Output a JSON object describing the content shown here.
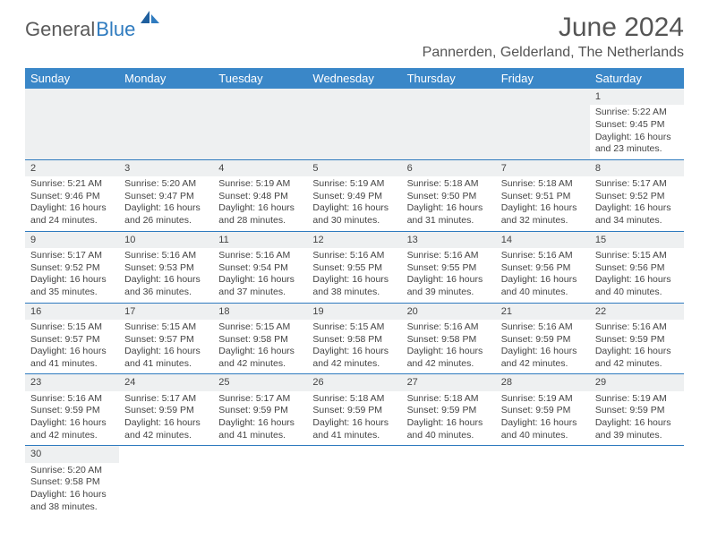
{
  "logo": {
    "general": "General",
    "blue": "Blue"
  },
  "title": "June 2024",
  "location": "Pannerden, Gelderland, The Netherlands",
  "colors": {
    "header_bg": "#3a87c8",
    "header_text": "#ffffff",
    "row_divider": "#2f7bbf",
    "daynum_bg": "#eef0f1",
    "body_text": "#444444",
    "logo_gray": "#5a5a5a",
    "logo_blue": "#2f7bbf"
  },
  "font": {
    "title_size_pt": 22,
    "location_size_pt": 12,
    "header_size_pt": 10,
    "cell_size_pt": 8
  },
  "dayNames": [
    "Sunday",
    "Monday",
    "Tuesday",
    "Wednesday",
    "Thursday",
    "Friday",
    "Saturday"
  ],
  "weeks": [
    [
      null,
      null,
      null,
      null,
      null,
      null,
      {
        "n": "1",
        "sr": "5:22 AM",
        "ss": "9:45 PM",
        "dl": "16 hours and 23 minutes."
      }
    ],
    [
      {
        "n": "2",
        "sr": "5:21 AM",
        "ss": "9:46 PM",
        "dl": "16 hours and 24 minutes."
      },
      {
        "n": "3",
        "sr": "5:20 AM",
        "ss": "9:47 PM",
        "dl": "16 hours and 26 minutes."
      },
      {
        "n": "4",
        "sr": "5:19 AM",
        "ss": "9:48 PM",
        "dl": "16 hours and 28 minutes."
      },
      {
        "n": "5",
        "sr": "5:19 AM",
        "ss": "9:49 PM",
        "dl": "16 hours and 30 minutes."
      },
      {
        "n": "6",
        "sr": "5:18 AM",
        "ss": "9:50 PM",
        "dl": "16 hours and 31 minutes."
      },
      {
        "n": "7",
        "sr": "5:18 AM",
        "ss": "9:51 PM",
        "dl": "16 hours and 32 minutes."
      },
      {
        "n": "8",
        "sr": "5:17 AM",
        "ss": "9:52 PM",
        "dl": "16 hours and 34 minutes."
      }
    ],
    [
      {
        "n": "9",
        "sr": "5:17 AM",
        "ss": "9:52 PM",
        "dl": "16 hours and 35 minutes."
      },
      {
        "n": "10",
        "sr": "5:16 AM",
        "ss": "9:53 PM",
        "dl": "16 hours and 36 minutes."
      },
      {
        "n": "11",
        "sr": "5:16 AM",
        "ss": "9:54 PM",
        "dl": "16 hours and 37 minutes."
      },
      {
        "n": "12",
        "sr": "5:16 AM",
        "ss": "9:55 PM",
        "dl": "16 hours and 38 minutes."
      },
      {
        "n": "13",
        "sr": "5:16 AM",
        "ss": "9:55 PM",
        "dl": "16 hours and 39 minutes."
      },
      {
        "n": "14",
        "sr": "5:16 AM",
        "ss": "9:56 PM",
        "dl": "16 hours and 40 minutes."
      },
      {
        "n": "15",
        "sr": "5:15 AM",
        "ss": "9:56 PM",
        "dl": "16 hours and 40 minutes."
      }
    ],
    [
      {
        "n": "16",
        "sr": "5:15 AM",
        "ss": "9:57 PM",
        "dl": "16 hours and 41 minutes."
      },
      {
        "n": "17",
        "sr": "5:15 AM",
        "ss": "9:57 PM",
        "dl": "16 hours and 41 minutes."
      },
      {
        "n": "18",
        "sr": "5:15 AM",
        "ss": "9:58 PM",
        "dl": "16 hours and 42 minutes."
      },
      {
        "n": "19",
        "sr": "5:15 AM",
        "ss": "9:58 PM",
        "dl": "16 hours and 42 minutes."
      },
      {
        "n": "20",
        "sr": "5:16 AM",
        "ss": "9:58 PM",
        "dl": "16 hours and 42 minutes."
      },
      {
        "n": "21",
        "sr": "5:16 AM",
        "ss": "9:59 PM",
        "dl": "16 hours and 42 minutes."
      },
      {
        "n": "22",
        "sr": "5:16 AM",
        "ss": "9:59 PM",
        "dl": "16 hours and 42 minutes."
      }
    ],
    [
      {
        "n": "23",
        "sr": "5:16 AM",
        "ss": "9:59 PM",
        "dl": "16 hours and 42 minutes."
      },
      {
        "n": "24",
        "sr": "5:17 AM",
        "ss": "9:59 PM",
        "dl": "16 hours and 42 minutes."
      },
      {
        "n": "25",
        "sr": "5:17 AM",
        "ss": "9:59 PM",
        "dl": "16 hours and 41 minutes."
      },
      {
        "n": "26",
        "sr": "5:18 AM",
        "ss": "9:59 PM",
        "dl": "16 hours and 41 minutes."
      },
      {
        "n": "27",
        "sr": "5:18 AM",
        "ss": "9:59 PM",
        "dl": "16 hours and 40 minutes."
      },
      {
        "n": "28",
        "sr": "5:19 AM",
        "ss": "9:59 PM",
        "dl": "16 hours and 40 minutes."
      },
      {
        "n": "29",
        "sr": "5:19 AM",
        "ss": "9:59 PM",
        "dl": "16 hours and 39 minutes."
      }
    ],
    [
      {
        "n": "30",
        "sr": "5:20 AM",
        "ss": "9:58 PM",
        "dl": "16 hours and 38 minutes."
      },
      null,
      null,
      null,
      null,
      null,
      null
    ]
  ],
  "labels": {
    "sunrise": "Sunrise: ",
    "sunset": "Sunset: ",
    "daylight": "Daylight: "
  }
}
